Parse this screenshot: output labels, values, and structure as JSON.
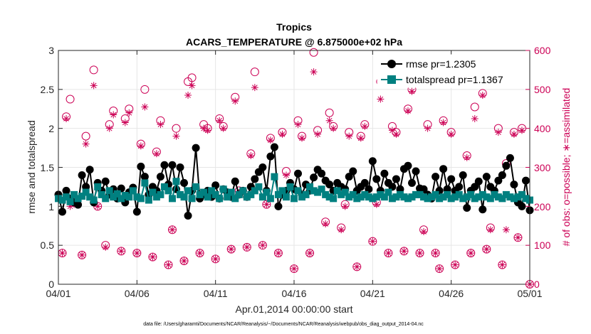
{
  "chart_data": {
    "type": "line",
    "title": "Tropics",
    "subtitle": "ACARS_TEMPERATURE @ 6.875000e+02 hPa",
    "xlabel": "Apr.01,2014 00:00:00 start",
    "ylabel_left": "rmse and totalspread",
    "ylabel_right": "# of obs: o=possible; ∗=assimilated",
    "x_ticks": [
      "04/01",
      "04/06",
      "04/11",
      "04/16",
      "04/21",
      "04/26",
      "05/01"
    ],
    "y_left_ticks": [
      "0",
      "0.5",
      "1",
      "1.5",
      "2",
      "2.5",
      "3"
    ],
    "y_right_ticks": [
      "0",
      "100",
      "200",
      "300",
      "400",
      "500",
      "600"
    ],
    "xlim": [
      0,
      30
    ],
    "ylim_left": [
      0,
      3
    ],
    "ylim_right": [
      0,
      600
    ],
    "grid": true,
    "legend_position": "top-right",
    "footer": "data file: /Users/gharamti/Documents/NCAR/Reanalysis/~/Documents/NCAR/Reanalysis/webpub/obs_diag_output_2014-04.nc",
    "colors": {
      "rmse": "#000000",
      "spread": "#008080",
      "obs": "#cc0055"
    },
    "series": [
      {
        "name": "rmse",
        "legend": "rmse pr=1.2305",
        "x": [
          0.0,
          0.25,
          0.5,
          0.75,
          1.0,
          1.25,
          1.5,
          1.75,
          2.0,
          2.25,
          2.5,
          2.75,
          3.0,
          3.25,
          3.5,
          3.75,
          4.0,
          4.25,
          4.5,
          4.75,
          5.0,
          5.25,
          5.5,
          5.75,
          6.0,
          6.25,
          6.5,
          6.75,
          7.0,
          7.25,
          7.5,
          7.75,
          8.0,
          8.25,
          8.5,
          8.75,
          9.0,
          9.25,
          9.5,
          9.75,
          10.0,
          10.25,
          10.5,
          10.75,
          11.0,
          11.25,
          11.5,
          11.75,
          12.0,
          12.25,
          12.5,
          12.75,
          13.0,
          13.25,
          13.5,
          13.75,
          14.0,
          14.25,
          14.5,
          14.75,
          15.0,
          15.25,
          15.5,
          15.75,
          16.0,
          16.25,
          16.5,
          16.75,
          17.0,
          17.25,
          17.5,
          17.75,
          18.0,
          18.25,
          18.5,
          18.75,
          19.0,
          19.25,
          19.5,
          19.75,
          20.0,
          20.25,
          20.5,
          20.75,
          21.0,
          21.25,
          21.5,
          21.75,
          22.0,
          22.25,
          22.5,
          22.75,
          23.0,
          23.25,
          23.5,
          23.75,
          24.0,
          24.25,
          24.5,
          24.75,
          25.0,
          25.25,
          25.5,
          25.75,
          26.0,
          26.25,
          26.5,
          26.75,
          27.0,
          27.25,
          27.5,
          27.75,
          28.0,
          28.25,
          28.5,
          28.75,
          29.0,
          29.25,
          29.5,
          29.75,
          30.0
        ],
        "values": [
          1.15,
          0.93,
          1.2,
          1.1,
          1.05,
          1.02,
          1.4,
          1.25,
          1.47,
          1.05,
          1.3,
          1.2,
          1.32,
          1.15,
          1.22,
          1.1,
          1.23,
          1.05,
          1.18,
          1.24,
          0.93,
          1.51,
          1.38,
          1.15,
          1.25,
          1.2,
          1.38,
          1.53,
          1.28,
          1.53,
          1.22,
          1.5,
          1.3,
          0.88,
          1.2,
          1.75,
          1.1,
          1.15,
          1.2,
          1.12,
          1.27,
          1.1,
          1.22,
          1.18,
          1.12,
          1.32,
          1.15,
          1.2,
          1.12,
          1.25,
          1.35,
          1.44,
          1.5,
          1.2,
          1.64,
          1.76,
          1.0,
          1.15,
          1.2,
          1.3,
          1.22,
          1.42,
          1.15,
          1.28,
          1.2,
          1.37,
          1.47,
          1.42,
          1.33,
          1.28,
          1.2,
          1.3,
          1.25,
          1.22,
          1.38,
          1.45,
          1.2,
          1.25,
          1.3,
          1.22,
          1.58,
          1.35,
          1.2,
          1.42,
          1.3,
          1.25,
          1.35,
          1.22,
          1.48,
          1.52,
          1.3,
          1.45,
          1.23,
          1.22,
          1.15,
          1.1,
          1.38,
          1.2,
          1.48,
          1.22,
          1.35,
          1.2,
          1.25,
          1.4,
          0.98,
          1.2,
          1.25,
          1.32,
          0.96,
          1.38,
          1.25,
          1.2,
          1.33,
          1.4,
          1.52,
          1.62,
          1.28,
          1.05,
          1.0,
          1.33,
          0.95
        ]
      },
      {
        "name": "totalspread",
        "legend": "totalspread pr=1.1367",
        "x": [
          0.0,
          0.25,
          0.5,
          0.75,
          1.0,
          1.25,
          1.5,
          1.75,
          2.0,
          2.25,
          2.5,
          2.75,
          3.0,
          3.25,
          3.5,
          3.75,
          4.0,
          4.25,
          4.5,
          4.75,
          5.0,
          5.25,
          5.5,
          5.75,
          6.0,
          6.25,
          6.5,
          6.75,
          7.0,
          7.25,
          7.5,
          7.75,
          8.0,
          8.25,
          8.5,
          8.75,
          9.0,
          9.25,
          9.5,
          9.75,
          10.0,
          10.25,
          10.5,
          10.75,
          11.0,
          11.25,
          11.5,
          11.75,
          12.0,
          12.25,
          12.5,
          12.75,
          13.0,
          13.25,
          13.5,
          13.75,
          14.0,
          14.25,
          14.5,
          14.75,
          15.0,
          15.25,
          15.5,
          15.75,
          16.0,
          16.25,
          16.5,
          16.75,
          17.0,
          17.25,
          17.5,
          17.75,
          18.0,
          18.25,
          18.5,
          18.75,
          19.0,
          19.25,
          19.5,
          19.75,
          20.0,
          20.25,
          20.5,
          20.75,
          21.0,
          21.25,
          21.5,
          21.75,
          22.0,
          22.25,
          22.5,
          22.75,
          23.0,
          23.25,
          23.5,
          23.75,
          24.0,
          24.25,
          24.5,
          24.75,
          25.0,
          25.25,
          25.5,
          25.75,
          26.0,
          26.25,
          26.5,
          26.75,
          27.0,
          27.25,
          27.5,
          27.75,
          28.0,
          28.25,
          28.5,
          28.75,
          29.0,
          29.25,
          29.5,
          29.75,
          30.0
        ],
        "values": [
          1.1,
          1.08,
          1.12,
          1.06,
          1.15,
          1.1,
          1.13,
          1.18,
          1.12,
          1.08,
          1.25,
          1.15,
          1.1,
          1.2,
          1.12,
          1.16,
          1.1,
          1.14,
          1.12,
          1.2,
          1.12,
          1.1,
          1.3,
          1.08,
          1.18,
          1.12,
          1.15,
          1.25,
          1.2,
          1.1,
          1.32,
          1.15,
          1.12,
          1.2,
          1.1,
          1.25,
          1.15,
          1.18,
          1.12,
          1.2,
          1.15,
          1.1,
          1.22,
          1.12,
          1.18,
          1.1,
          1.15,
          1.2,
          1.12,
          1.15,
          1.2,
          1.25,
          1.12,
          1.18,
          1.1,
          1.38,
          1.15,
          1.2,
          1.12,
          1.25,
          1.1,
          1.2,
          1.12,
          1.15,
          1.25,
          1.2,
          1.18,
          1.22,
          1.15,
          1.12,
          1.1,
          1.2,
          1.15,
          1.18,
          1.12,
          1.15,
          1.1,
          1.12,
          1.15,
          1.12,
          1.1,
          1.12,
          1.15,
          1.12,
          1.18,
          1.1,
          1.12,
          1.15,
          1.12,
          1.1,
          1.12,
          1.15,
          1.15,
          1.12,
          1.1,
          1.12,
          1.15,
          1.1,
          1.12,
          1.15,
          1.1,
          1.12,
          1.15,
          1.1,
          1.12,
          1.15,
          1.1,
          1.12,
          1.15,
          1.12,
          1.1,
          1.15,
          1.12,
          1.1,
          1.15,
          1.12,
          1.1,
          1.12,
          1.15,
          1.1,
          1.08
        ]
      },
      {
        "name": "obs_possible",
        "axis": "right",
        "marker": "circle",
        "x": [
          0.25,
          0.5,
          0.75,
          1.0,
          1.5,
          1.75,
          2.25,
          2.5,
          3.0,
          3.25,
          3.5,
          4.0,
          4.25,
          4.5,
          5.0,
          5.25,
          5.5,
          6.0,
          6.25,
          6.5,
          7.0,
          7.25,
          7.5,
          8.0,
          8.25,
          8.5,
          9.0,
          9.25,
          9.5,
          10.0,
          10.25,
          10.5,
          11.0,
          11.25,
          11.5,
          12.0,
          12.25,
          12.5,
          13.0,
          13.25,
          13.5,
          14.0,
          14.25,
          14.5,
          15.0,
          15.25,
          15.5,
          16.0,
          16.25,
          16.5,
          17.0,
          17.25,
          17.5,
          18.0,
          18.25,
          18.5,
          19.0,
          19.25,
          19.5,
          20.0,
          20.25,
          20.5,
          21.0,
          21.25,
          21.5,
          22.0,
          22.25,
          22.5,
          23.0,
          23.25,
          23.5,
          24.0,
          24.25,
          24.5,
          25.0,
          25.25,
          25.5,
          26.0,
          26.25,
          26.5,
          27.0,
          27.25,
          27.5,
          28.0,
          28.25,
          28.5,
          29.0,
          29.25,
          29.5,
          30.0
        ],
        "values": [
          80,
          430,
          475,
          210,
          75,
          380,
          550,
          200,
          100,
          410,
          445,
          85,
          425,
          450,
          80,
          360,
          500,
          70,
          340,
          420,
          50,
          140,
          400,
          60,
          520,
          530,
          80,
          410,
          400,
          65,
          425,
          405,
          90,
          480,
          240,
          95,
          335,
          545,
          100,
          205,
          375,
          80,
          390,
          290,
          40,
          420,
          380,
          80,
          595,
          395,
          160,
          440,
          405,
          145,
          205,
          390,
          45,
          380,
          410,
          110,
          210,
          520,
          80,
          405,
          390,
          85,
          450,
          500,
          80,
          140,
          410,
          80,
          40,
          420,
          390,
          50,
          520,
          330,
          80,
          455,
          490,
          90,
          145,
          400,
          50,
          310,
          390,
          120,
          400,
          0
        ]
      },
      {
        "name": "obs_assimilated",
        "axis": "right",
        "marker": "asterisk",
        "x": [
          0.25,
          0.5,
          0.75,
          1.0,
          1.5,
          1.75,
          2.25,
          2.5,
          3.0,
          3.25,
          3.5,
          4.0,
          4.25,
          4.5,
          5.0,
          5.25,
          5.5,
          6.0,
          6.25,
          6.5,
          7.0,
          7.25,
          7.5,
          8.0,
          8.25,
          8.5,
          9.0,
          9.25,
          9.5,
          10.0,
          10.25,
          10.5,
          11.0,
          11.25,
          11.5,
          12.0,
          12.25,
          12.5,
          13.0,
          13.25,
          13.5,
          14.0,
          14.25,
          14.5,
          15.0,
          15.25,
          15.5,
          16.0,
          16.25,
          16.5,
          17.0,
          17.25,
          17.5,
          18.0,
          18.25,
          18.5,
          19.0,
          19.25,
          19.5,
          20.0,
          20.25,
          20.5,
          21.0,
          21.25,
          21.5,
          22.0,
          22.25,
          22.5,
          23.0,
          23.25,
          23.5,
          24.0,
          24.25,
          24.5,
          25.0,
          25.25,
          25.5,
          26.0,
          26.25,
          26.5,
          27.0,
          27.25,
          27.5,
          28.0,
          28.25,
          28.5,
          29.0,
          29.25,
          29.5,
          30.0
        ],
        "values": [
          80,
          425,
          200,
          205,
          75,
          360,
          510,
          200,
          95,
          400,
          435,
          85,
          415,
          440,
          80,
          355,
          455,
          70,
          335,
          410,
          50,
          140,
          380,
          60,
          485,
          510,
          80,
          400,
          395,
          65,
          420,
          400,
          90,
          470,
          235,
          95,
          330,
          505,
          100,
          205,
          370,
          80,
          385,
          280,
          40,
          410,
          375,
          80,
          545,
          385,
          155,
          420,
          400,
          140,
          200,
          380,
          45,
          375,
          405,
          110,
          205,
          475,
          80,
          395,
          385,
          85,
          445,
          495,
          80,
          135,
          400,
          80,
          40,
          415,
          385,
          50,
          515,
          325,
          80,
          425,
          485,
          90,
          140,
          390,
          50,
          140,
          385,
          120,
          395,
          0
        ]
      }
    ]
  }
}
